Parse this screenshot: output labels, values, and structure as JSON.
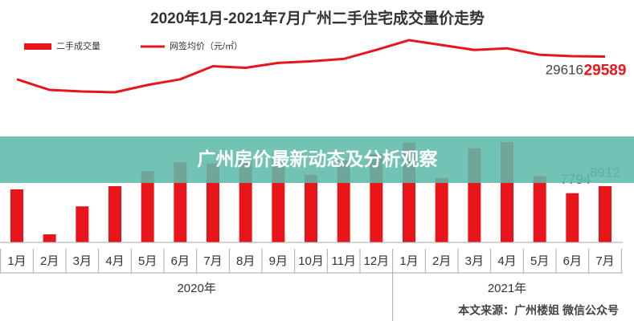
{
  "chart_data": {
    "type": "bar_line",
    "title": "2020年1月-2021年7月广州二手住宅成交量价走势",
    "banner": "广州房价最新动态及分析观察",
    "source": "本文来源：广州楼姐 微信公众号",
    "categories": [
      "1月",
      "2月",
      "3月",
      "4月",
      "5月",
      "6月",
      "7月",
      "8月",
      "9月",
      "10月",
      "11月",
      "12月",
      "1月",
      "2月",
      "3月",
      "4月",
      "5月",
      "6月",
      "7月"
    ],
    "groups": [
      "2020年",
      "2021年"
    ],
    "series": [
      {
        "name": "二手成交量",
        "type": "bar",
        "color": "#e8161b",
        "values": [
          8400,
          1270,
          5700,
          8900,
          11300,
          12700,
          12500,
          13000,
          13500,
          10700,
          13000,
          14000,
          15800,
          10200,
          14900,
          15900,
          10500,
          7794,
          8912
        ],
        "value_labels": [
          null,
          null,
          null,
          null,
          null,
          null,
          null,
          null,
          null,
          null,
          null,
          null,
          null,
          null,
          null,
          null,
          null,
          "7794",
          "8912"
        ]
      },
      {
        "name": "网签均价（元/㎡）",
        "type": "line",
        "color": "#e8161b",
        "values": [
          27920,
          27140,
          27020,
          26960,
          27500,
          27920,
          28880,
          28760,
          29120,
          29240,
          29420,
          30080,
          30800,
          30440,
          30080,
          30200,
          29720,
          29616,
          29589
        ],
        "value_labels": [
          null,
          null,
          null,
          null,
          null,
          null,
          null,
          null,
          null,
          null,
          null,
          null,
          null,
          null,
          null,
          null,
          null,
          "29616",
          "29589"
        ]
      }
    ]
  }
}
